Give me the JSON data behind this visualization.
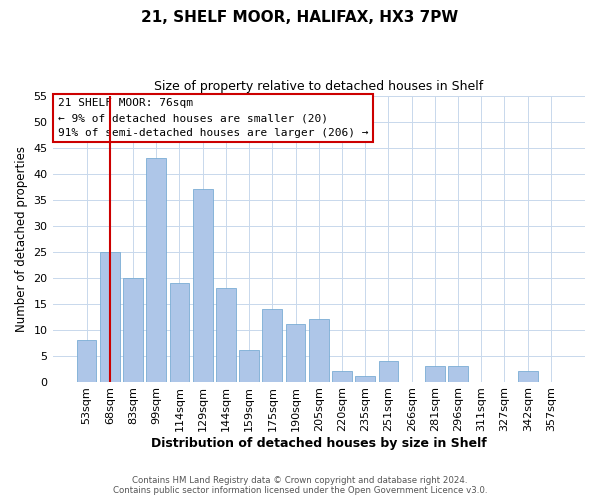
{
  "title_line1": "21, SHELF MOOR, HALIFAX, HX3 7PW",
  "title_line2": "Size of property relative to detached houses in Shelf",
  "xlabel": "Distribution of detached houses by size in Shelf",
  "ylabel": "Number of detached properties",
  "bar_labels": [
    "53sqm",
    "68sqm",
    "83sqm",
    "99sqm",
    "114sqm",
    "129sqm",
    "144sqm",
    "159sqm",
    "175sqm",
    "190sqm",
    "205sqm",
    "220sqm",
    "235sqm",
    "251sqm",
    "266sqm",
    "281sqm",
    "296sqm",
    "311sqm",
    "327sqm",
    "342sqm",
    "357sqm"
  ],
  "bar_values": [
    8,
    25,
    20,
    43,
    19,
    37,
    18,
    6,
    14,
    11,
    12,
    2,
    1,
    4,
    0,
    3,
    3,
    0,
    0,
    2,
    0
  ],
  "bar_color": "#aec6e8",
  "bar_edgecolor": "#7aadd4",
  "ylim": [
    0,
    55
  ],
  "yticks": [
    0,
    5,
    10,
    15,
    20,
    25,
    30,
    35,
    40,
    45,
    50,
    55
  ],
  "vline_x": 1,
  "vline_color": "#cc0000",
  "annotation_title": "21 SHELF MOOR: 76sqm",
  "annotation_line2": "← 9% of detached houses are smaller (20)",
  "annotation_line3": "91% of semi-detached houses are larger (206) →",
  "annotation_box_color": "#cc0000",
  "footer_line1": "Contains HM Land Registry data © Crown copyright and database right 2024.",
  "footer_line2": "Contains public sector information licensed under the Open Government Licence v3.0.",
  "bg_color": "#ffffff",
  "plot_bg_color": "#ffffff",
  "grid_color": "#c8d8ec"
}
